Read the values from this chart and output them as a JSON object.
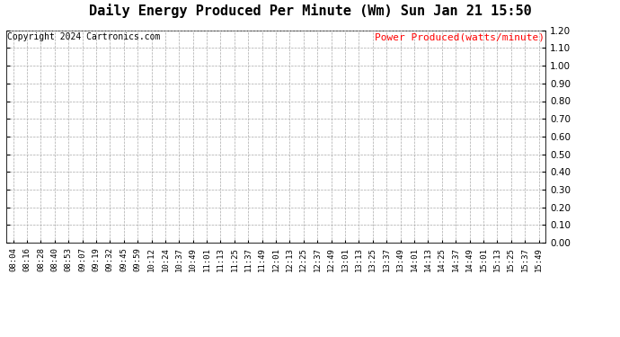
{
  "title": "Daily Energy Produced Per Minute (Wm) Sun Jan 21 15:50",
  "title_fontsize": 11,
  "title_fontweight": "bold",
  "copyright_text": "Copyright 2024 Cartronics.com",
  "copyright_color": "#000000",
  "copyright_fontsize": 7,
  "legend_label": "Power Produced(watts/minute)",
  "legend_color": "#ff0000",
  "legend_fontsize": 8,
  "ylim": [
    0.0,
    1.2
  ],
  "yticks": [
    0.0,
    0.1,
    0.2,
    0.3,
    0.4,
    0.5,
    0.6,
    0.7,
    0.8,
    0.9,
    1.0,
    1.1,
    1.2
  ],
  "xtick_labels": [
    "08:04",
    "08:16",
    "08:28",
    "08:40",
    "08:53",
    "09:07",
    "09:19",
    "09:32",
    "09:45",
    "09:59",
    "10:12",
    "10:24",
    "10:37",
    "10:49",
    "11:01",
    "11:13",
    "11:25",
    "11:37",
    "11:49",
    "12:01",
    "12:13",
    "12:25",
    "12:37",
    "12:49",
    "13:01",
    "13:13",
    "13:25",
    "13:37",
    "13:49",
    "14:01",
    "14:13",
    "14:25",
    "14:37",
    "14:49",
    "15:01",
    "15:13",
    "15:25",
    "15:37",
    "15:49"
  ],
  "grid_color": "#aaaaaa",
  "grid_linestyle": "--",
  "grid_linewidth": 0.5,
  "bg_color": "#ffffff",
  "line_color": "#ff0000",
  "tick_label_fontsize": 6.5,
  "ytick_label_fontsize": 7.5,
  "figwidth": 6.9,
  "figheight": 3.75,
  "dpi": 100
}
